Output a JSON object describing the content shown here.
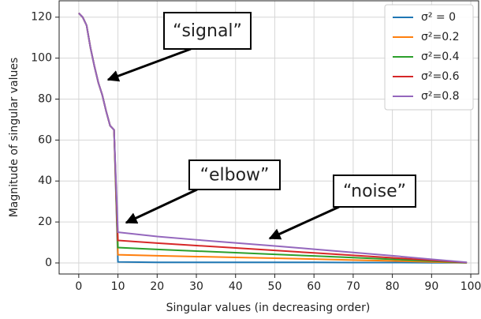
{
  "chart_data": {
    "type": "line",
    "xlabel": "Singular values (in decreasing order)",
    "ylabel": "Magnitude of singular values",
    "x": [
      0,
      1,
      2,
      3,
      4,
      5,
      6,
      7,
      8,
      9,
      10,
      20,
      30,
      40,
      50,
      60,
      70,
      80,
      90,
      99
    ],
    "series": [
      {
        "name": "σ² = 0",
        "color": "#1f77b4",
        "values": [
          122,
          120,
          116,
          105,
          96,
          88,
          82,
          74,
          67,
          65,
          0.5,
          0.3,
          0.3,
          0.3,
          0.3,
          0.3,
          0.2,
          0.2,
          0.1,
          0.1
        ]
      },
      {
        "name": "σ²=0.2",
        "color": "#ff7f0e",
        "values": [
          122,
          120,
          116,
          105,
          96,
          88,
          82,
          74,
          67,
          65,
          4,
          3.5,
          3.1,
          2.7,
          2.3,
          1.9,
          1.4,
          1,
          0.5,
          0.1
        ]
      },
      {
        "name": "σ²=0.4",
        "color": "#2ca02c",
        "values": [
          122,
          120,
          116,
          105,
          96,
          88,
          82,
          74,
          67,
          65,
          7.5,
          6.6,
          5.8,
          5,
          4.2,
          3.4,
          2.6,
          1.8,
          0.9,
          0.1
        ]
      },
      {
        "name": "σ²=0.6",
        "color": "#d62728",
        "values": [
          122,
          120,
          116,
          105,
          96,
          88,
          82,
          74,
          67,
          65,
          11,
          9.7,
          8.5,
          7.3,
          6.1,
          4.9,
          3.7,
          2.5,
          1.3,
          0.2
        ]
      },
      {
        "name": "σ²=0.8",
        "color": "#9467bd",
        "values": [
          122,
          120,
          116,
          105,
          96,
          88,
          82,
          74,
          67,
          65,
          15,
          12.9,
          11.3,
          9.8,
          8.3,
          6.7,
          5.1,
          3.5,
          1.8,
          0.3
        ]
      }
    ],
    "annotations": [
      "“signal”",
      "“elbow”",
      "“noise”"
    ],
    "xlim": [
      -5,
      102
    ],
    "xticks": [
      0,
      10,
      20,
      30,
      40,
      50,
      60,
      70,
      80,
      90,
      100
    ],
    "ylim": [
      -5.4,
      128
    ],
    "yticks": [
      0,
      20,
      40,
      60,
      80,
      100,
      120
    ],
    "grid": true,
    "legend": "upper right"
  }
}
